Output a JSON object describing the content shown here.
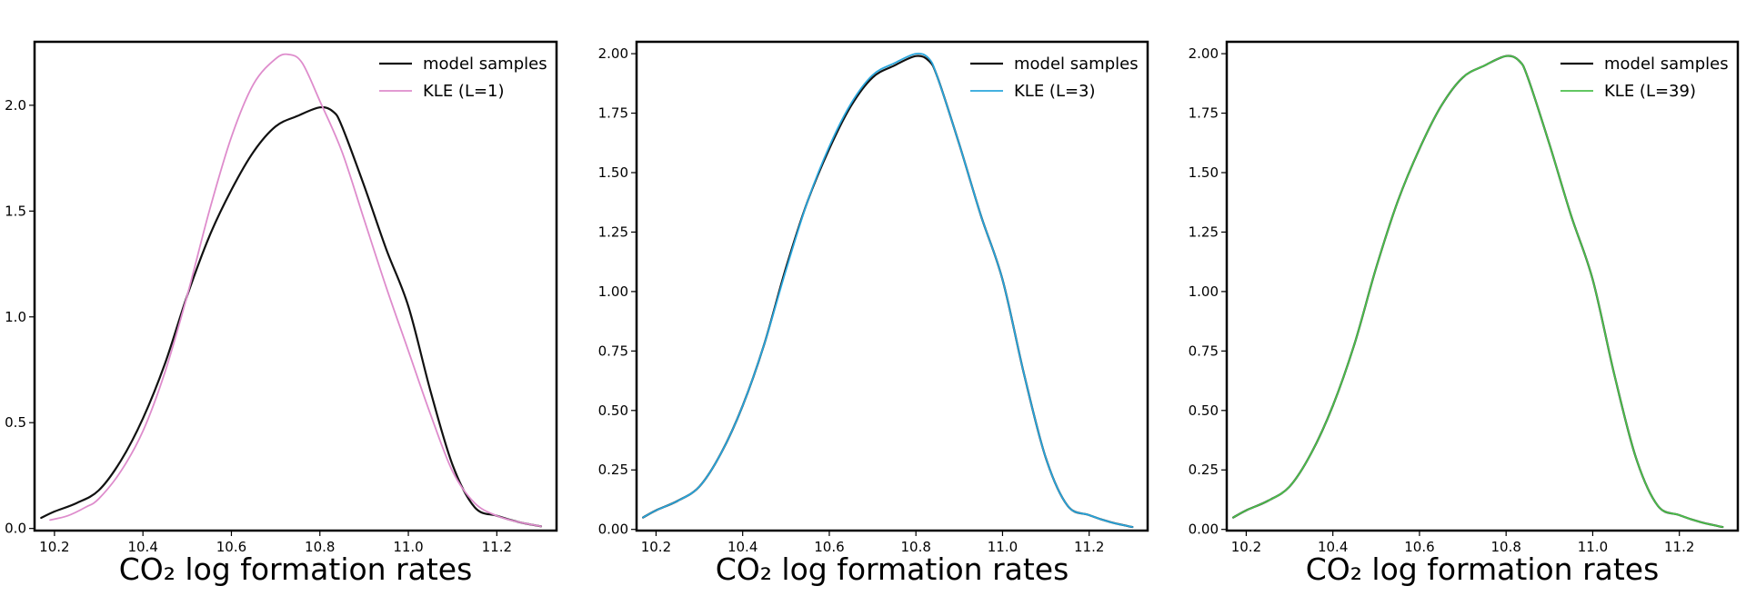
{
  "chart_data": [
    {
      "type": "line",
      "xlabel": "CO₂ log formation rates",
      "ylabel": "",
      "xlim": [
        10.155,
        11.335
      ],
      "ylim": [
        -0.01,
        2.3
      ],
      "xticks": [
        10.2,
        10.4,
        10.6,
        10.8,
        11.0,
        11.2
      ],
      "xtick_labels": [
        "10.2",
        "10.4",
        "10.6",
        "10.8",
        "11.0",
        "11.2"
      ],
      "yticks": [
        0.0,
        0.5,
        1.0,
        1.5,
        2.0
      ],
      "ytick_labels": [
        "0.0",
        "0.5",
        "1.0",
        "1.5",
        "2.0"
      ],
      "legend": "top-right",
      "grid": false,
      "series": [
        {
          "name": "model samples",
          "color": "#111111",
          "x": [
            10.17,
            10.2,
            10.25,
            10.3,
            10.35,
            10.4,
            10.45,
            10.5,
            10.55,
            10.6,
            10.65,
            10.7,
            10.75,
            10.8,
            10.83,
            10.85,
            10.9,
            10.95,
            11.0,
            11.05,
            11.1,
            11.15,
            11.2,
            11.25,
            11.3
          ],
          "y": [
            0.05,
            0.08,
            0.12,
            0.18,
            0.32,
            0.52,
            0.78,
            1.1,
            1.38,
            1.6,
            1.78,
            1.9,
            1.95,
            1.99,
            1.97,
            1.9,
            1.62,
            1.32,
            1.05,
            0.65,
            0.3,
            0.1,
            0.06,
            0.03,
            0.01
          ]
        },
        {
          "name": "KLE (L=1)",
          "color": "#de8ccc",
          "x": [
            10.19,
            10.23,
            10.27,
            10.3,
            10.35,
            10.4,
            10.45,
            10.5,
            10.55,
            10.6,
            10.65,
            10.7,
            10.73,
            10.76,
            10.8,
            10.85,
            10.9,
            10.95,
            11.0,
            11.05,
            11.1,
            11.15,
            11.2,
            11.25,
            11.3
          ],
          "y": [
            0.04,
            0.06,
            0.1,
            0.14,
            0.27,
            0.46,
            0.74,
            1.1,
            1.5,
            1.85,
            2.1,
            2.22,
            2.24,
            2.2,
            2.02,
            1.78,
            1.46,
            1.14,
            0.84,
            0.54,
            0.27,
            0.12,
            0.06,
            0.03,
            0.01
          ]
        }
      ]
    },
    {
      "type": "line",
      "xlabel": "CO₂ log formation rates",
      "ylabel": "",
      "xlim": [
        10.155,
        11.335
      ],
      "ylim": [
        -0.005,
        2.05
      ],
      "xticks": [
        10.2,
        10.4,
        10.6,
        10.8,
        11.0,
        11.2
      ],
      "xtick_labels": [
        "10.2",
        "10.4",
        "10.6",
        "10.8",
        "11.0",
        "11.2"
      ],
      "yticks": [
        0.0,
        0.25,
        0.5,
        0.75,
        1.0,
        1.25,
        1.5,
        1.75,
        2.0
      ],
      "ytick_labels": [
        "0.00",
        "0.25",
        "0.50",
        "0.75",
        "1.00",
        "1.25",
        "1.50",
        "1.75",
        "2.00"
      ],
      "legend": "top-right",
      "grid": false,
      "series": [
        {
          "name": "model samples",
          "color": "#111111",
          "x": [
            10.17,
            10.2,
            10.25,
            10.3,
            10.35,
            10.4,
            10.45,
            10.5,
            10.55,
            10.6,
            10.65,
            10.7,
            10.75,
            10.8,
            10.83,
            10.85,
            10.9,
            10.95,
            11.0,
            11.05,
            11.1,
            11.15,
            11.2,
            11.25,
            11.3
          ],
          "y": [
            0.05,
            0.08,
            0.12,
            0.18,
            0.32,
            0.52,
            0.78,
            1.1,
            1.38,
            1.6,
            1.78,
            1.9,
            1.95,
            1.99,
            1.97,
            1.9,
            1.62,
            1.32,
            1.05,
            0.65,
            0.3,
            0.1,
            0.06,
            0.03,
            0.01
          ]
        },
        {
          "name": "KLE (L=3)",
          "color": "#2aa6dc",
          "x": [
            10.17,
            10.2,
            10.25,
            10.3,
            10.35,
            10.4,
            10.45,
            10.5,
            10.55,
            10.6,
            10.65,
            10.7,
            10.75,
            10.8,
            10.83,
            10.85,
            10.9,
            10.95,
            11.0,
            11.05,
            11.1,
            11.15,
            11.2,
            11.25,
            11.3
          ],
          "y": [
            0.05,
            0.08,
            0.12,
            0.18,
            0.32,
            0.52,
            0.78,
            1.09,
            1.38,
            1.61,
            1.79,
            1.91,
            1.96,
            2.0,
            1.98,
            1.9,
            1.62,
            1.32,
            1.05,
            0.65,
            0.3,
            0.1,
            0.06,
            0.03,
            0.01
          ]
        }
      ]
    },
    {
      "type": "line",
      "xlabel": "CO₂ log formation rates",
      "ylabel": "",
      "xlim": [
        10.155,
        11.335
      ],
      "ylim": [
        -0.005,
        2.05
      ],
      "xticks": [
        10.2,
        10.4,
        10.6,
        10.8,
        11.0,
        11.2
      ],
      "xtick_labels": [
        "10.2",
        "10.4",
        "10.6",
        "10.8",
        "11.0",
        "11.2"
      ],
      "yticks": [
        0.0,
        0.25,
        0.5,
        0.75,
        1.0,
        1.25,
        1.5,
        1.75,
        2.0
      ],
      "ytick_labels": [
        "0.00",
        "0.25",
        "0.50",
        "0.75",
        "1.00",
        "1.25",
        "1.50",
        "1.75",
        "2.00"
      ],
      "legend": "top-right",
      "grid": false,
      "series": [
        {
          "name": "model samples",
          "color": "#111111",
          "x": [
            10.17,
            10.2,
            10.25,
            10.3,
            10.35,
            10.4,
            10.45,
            10.5,
            10.55,
            10.6,
            10.65,
            10.7,
            10.75,
            10.8,
            10.83,
            10.85,
            10.9,
            10.95,
            11.0,
            11.05,
            11.1,
            11.15,
            11.2,
            11.25,
            11.3
          ],
          "y": [
            0.05,
            0.08,
            0.12,
            0.18,
            0.32,
            0.52,
            0.78,
            1.1,
            1.38,
            1.6,
            1.78,
            1.9,
            1.95,
            1.99,
            1.97,
            1.9,
            1.62,
            1.32,
            1.05,
            0.65,
            0.3,
            0.1,
            0.06,
            0.03,
            0.01
          ]
        },
        {
          "name": "KLE (L=39)",
          "color": "#4cbf4c",
          "x": [
            10.17,
            10.2,
            10.25,
            10.3,
            10.35,
            10.4,
            10.45,
            10.5,
            10.55,
            10.6,
            10.65,
            10.7,
            10.75,
            10.8,
            10.83,
            10.85,
            10.9,
            10.95,
            11.0,
            11.05,
            11.1,
            11.15,
            11.2,
            11.25,
            11.3
          ],
          "y": [
            0.05,
            0.08,
            0.12,
            0.18,
            0.32,
            0.52,
            0.78,
            1.1,
            1.38,
            1.6,
            1.78,
            1.9,
            1.95,
            1.99,
            1.97,
            1.9,
            1.62,
            1.32,
            1.05,
            0.65,
            0.3,
            0.1,
            0.06,
            0.03,
            0.01
          ]
        }
      ]
    }
  ]
}
